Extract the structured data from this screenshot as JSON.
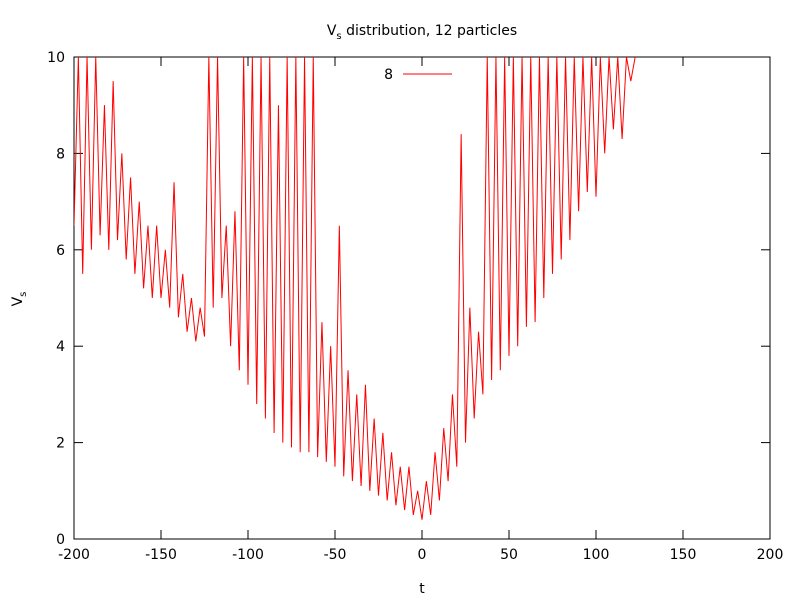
{
  "chart_data": {
    "type": "line",
    "title": {
      "text": "V",
      "subscript": "s",
      "rest": " distribution, 12 particles"
    },
    "xlabel": "t",
    "ylabel": {
      "text": "V",
      "subscript": "s"
    },
    "xlim": [
      -200,
      200
    ],
    "xticks": [
      -200,
      -150,
      -100,
      -50,
      0,
      50,
      100,
      150,
      200
    ],
    "ylim": [
      0,
      10
    ],
    "yticks": [
      0,
      2,
      4,
      6,
      8,
      10
    ],
    "grid": false,
    "legend": "top-center",
    "x": [
      -200,
      -197.5,
      -195,
      -192.5,
      -190,
      -187.5,
      -185,
      -182.5,
      -180,
      -177.5,
      -175,
      -172.5,
      -170,
      -167.5,
      -165,
      -162.5,
      -160,
      -157.5,
      -155,
      -152.5,
      -150,
      -147.5,
      -145,
      -142.5,
      -140,
      -137.5,
      -135,
      -132.5,
      -130,
      -127.5,
      -125,
      -122.5,
      -120,
      -117.5,
      -115,
      -112.5,
      -110,
      -107.5,
      -105,
      -102.5,
      -100,
      -97.5,
      -95,
      -92.5,
      -90,
      -87.5,
      -85,
      -82.5,
      -80,
      -77.5,
      -75,
      -72.5,
      -70,
      -67.5,
      -65,
      -62.5,
      -60,
      -57.5,
      -55,
      -52.5,
      -50,
      -47.5,
      -45,
      -42.5,
      -40,
      -37.5,
      -35,
      -32.5,
      -30,
      -27.5,
      -25,
      -22.5,
      -20,
      -17.5,
      -15,
      -12.5,
      -10,
      -7.5,
      -5,
      -2.5,
      0,
      2.5,
      5,
      7.5,
      10,
      12.5,
      15,
      17.5,
      20,
      22.5,
      25,
      27.5,
      30,
      32.5,
      35,
      37.5,
      40,
      42.5,
      45,
      47.5,
      50,
      52.5,
      55,
      57.5,
      60,
      62.5,
      65,
      67.5,
      70,
      72.5,
      75,
      77.5,
      80,
      82.5,
      85,
      87.5,
      90,
      92.5,
      95,
      97.5,
      100,
      102.5,
      105,
      107.5,
      110,
      112.5,
      115,
      117.5,
      120,
      122.5
    ],
    "series": [
      {
        "name": "8",
        "color": "#ff0000",
        "values": [
          6.5,
          10,
          5.5,
          10,
          6,
          10,
          6.3,
          9,
          6,
          9.5,
          6.2,
          8,
          5.8,
          7.5,
          5.5,
          7,
          5.2,
          6.5,
          5,
          6.5,
          5,
          6,
          4.8,
          7.4,
          4.6,
          5.5,
          4.3,
          5,
          4.1,
          4.8,
          4.2,
          10,
          4.8,
          10,
          5,
          6.5,
          4,
          6.8,
          3.5,
          10,
          3.2,
          10,
          2.8,
          10,
          2.5,
          10,
          2.2,
          9,
          2,
          10,
          1.9,
          10,
          1.8,
          10,
          1.8,
          10,
          1.7,
          4.5,
          1.6,
          4,
          1.5,
          6.5,
          1.3,
          3.5,
          1.2,
          3,
          1.1,
          3.2,
          1,
          2.5,
          0.9,
          2.2,
          0.8,
          1.8,
          0.7,
          1.5,
          0.6,
          1.5,
          0.5,
          1,
          0.4,
          1.2,
          0.5,
          1.8,
          0.8,
          2.3,
          1.2,
          3,
          1.5,
          8.4,
          2,
          4.8,
          2.5,
          4.3,
          3,
          10,
          3.3,
          10,
          3.5,
          10,
          3.8,
          10,
          4,
          10,
          4.4,
          10,
          4.5,
          10,
          5,
          10,
          5.5,
          10,
          5.8,
          10,
          6.2,
          10,
          6.8,
          10,
          7.2,
          10,
          7.1,
          10,
          8,
          10,
          8.5,
          10,
          8.3,
          10,
          9.5,
          10
        ]
      }
    ]
  }
}
